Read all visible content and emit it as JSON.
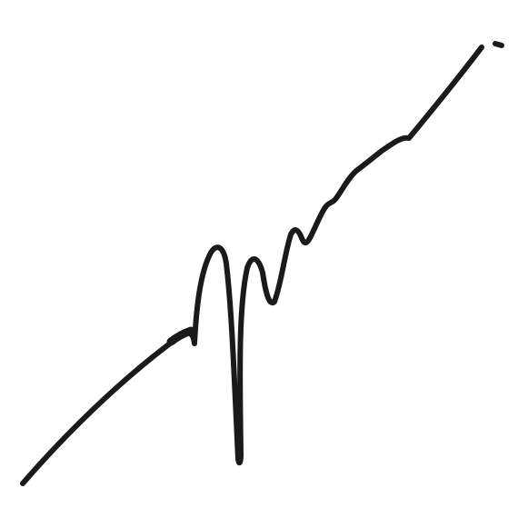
{
  "image": {
    "subject": "signature",
    "background_color": "#ffffff",
    "ink_color": "#1a1a1a"
  }
}
